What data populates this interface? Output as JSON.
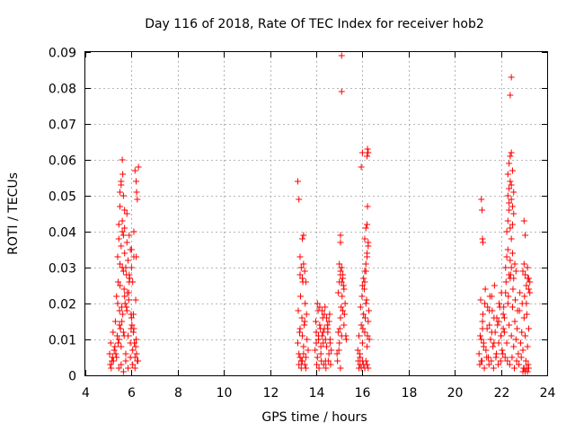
{
  "chart_data": {
    "type": "scatter",
    "title": "Day 116 of 2018, Rate Of TEC Index for receiver hob2",
    "xlabel": "GPS time / hours",
    "ylabel": "ROTI / TECUs",
    "xlim": [
      4,
      24
    ],
    "ylim": [
      0,
      0.09
    ],
    "xticks": [
      4,
      6,
      8,
      10,
      12,
      14,
      16,
      18,
      20,
      22,
      24
    ],
    "xtick_labels": [
      "4",
      "6",
      "8",
      "10",
      "12",
      "14",
      "16",
      "18",
      "20",
      "22",
      "24"
    ],
    "yticks": [
      0,
      0.01,
      0.02,
      0.03,
      0.04,
      0.05,
      0.06,
      0.07,
      0.08,
      0.09
    ],
    "ytick_labels": [
      "0",
      "0.01",
      "0.02",
      "0.03",
      "0.04",
      "0.05",
      "0.06",
      "0.07",
      "0.08",
      "0.09"
    ],
    "grid": true,
    "marker": "+",
    "color": "#ff0000",
    "series": [
      {
        "name": "ROTI",
        "x": [
          5.05,
          5.1,
          5.15,
          5.2,
          5.25,
          5.3,
          5.35,
          5.4,
          5.45,
          5.5,
          5.55,
          5.6,
          5.65,
          5.7,
          5.75,
          5.8,
          5.85,
          5.9,
          5.95,
          6.0,
          6.05,
          6.1,
          6.15,
          6.2,
          6.25,
          5.08,
          5.18,
          5.28,
          5.38,
          5.48,
          5.58,
          5.68,
          5.78,
          5.88,
          5.98,
          6.08,
          6.18,
          6.28,
          5.12,
          5.22,
          5.32,
          5.42,
          5.52,
          5.62,
          5.72,
          5.82,
          5.92,
          6.02,
          6.12,
          6.22,
          5.4,
          5.45,
          5.5,
          5.55,
          5.6,
          5.65,
          5.7,
          5.75,
          5.8,
          5.85,
          5.9,
          5.95,
          6.0,
          6.05,
          6.1,
          5.45,
          5.5,
          5.55,
          5.6,
          5.65,
          5.7,
          5.8,
          5.9,
          6.0,
          6.1,
          6.2,
          5.5,
          5.55,
          5.6,
          5.62,
          5.65,
          5.7,
          6.15,
          6.2,
          6.22,
          6.25,
          6.3,
          5.45,
          5.55,
          5.65,
          5.75,
          5.85,
          5.95,
          6.05,
          6.15,
          5.35,
          5.42,
          5.48,
          5.58,
          5.68,
          5.78,
          5.88,
          5.98,
          6.08,
          6.18,
          13.2,
          13.25,
          13.3,
          13.35,
          13.4,
          13.45,
          13.5,
          13.55,
          13.6,
          13.65,
          13.22,
          13.28,
          13.32,
          13.38,
          13.42,
          13.48,
          13.52,
          13.58,
          13.25,
          13.3,
          13.35,
          13.4,
          13.45,
          13.5,
          13.55,
          13.3,
          13.35,
          13.4,
          13.45,
          13.5,
          13.55,
          13.4,
          13.45,
          13.2,
          13.25,
          13.3,
          13.95,
          14.0,
          14.05,
          14.1,
          14.15,
          14.2,
          14.25,
          14.3,
          14.35,
          14.4,
          14.45,
          14.5,
          14.55,
          14.6,
          14.65,
          13.98,
          14.08,
          14.18,
          14.28,
          14.38,
          14.48,
          14.58,
          14.02,
          14.12,
          14.22,
          14.32,
          14.42,
          14.52,
          14.62,
          14.05,
          14.15,
          14.25,
          14.35,
          14.45,
          14.55,
          14.0,
          14.1,
          14.2,
          14.3,
          14.4,
          14.5,
          14.6,
          14.9,
          14.95,
          15.0,
          15.05,
          15.1,
          15.15,
          15.2,
          15.25,
          15.3,
          14.92,
          14.98,
          15.02,
          15.08,
          15.12,
          15.18,
          15.22,
          15.28,
          14.95,
          15.0,
          15.05,
          15.1,
          15.15,
          15.2,
          15.0,
          15.05,
          15.1,
          15.15,
          15.05,
          15.1,
          15.1,
          15.05,
          15.05,
          15.8,
          15.85,
          15.9,
          15.95,
          16.0,
          16.05,
          16.1,
          16.15,
          16.2,
          16.25,
          16.3,
          15.82,
          15.88,
          15.92,
          15.98,
          16.02,
          16.08,
          16.12,
          16.18,
          16.22,
          16.28,
          15.85,
          15.9,
          15.95,
          16.0,
          16.05,
          16.1,
          16.15,
          16.2,
          16.25,
          16.0,
          16.05,
          16.1,
          16.15,
          16.2,
          16.25,
          16.1,
          16.15,
          16.2,
          16.22,
          15.95,
          16.0,
          16.2,
          16.22,
          16.25,
          16.1,
          16.15,
          16.2,
          16.25,
          21.05,
          21.1,
          21.15,
          21.2,
          21.25,
          21.3,
          21.35,
          21.4,
          21.45,
          21.5,
          21.55,
          21.6,
          21.65,
          21.7,
          21.75,
          21.8,
          21.85,
          21.9,
          21.95,
          22.0,
          22.05,
          22.1,
          22.15,
          22.2,
          22.25,
          22.3,
          22.35,
          22.4,
          22.45,
          22.5,
          22.55,
          22.6,
          22.65,
          22.7,
          22.75,
          22.8,
          22.85,
          22.9,
          22.95,
          23.0,
          23.05,
          23.1,
          23.15,
          23.2,
          21.08,
          21.18,
          21.28,
          21.38,
          21.48,
          21.58,
          21.68,
          21.78,
          21.88,
          21.98,
          22.08,
          22.18,
          22.28,
          22.38,
          22.48,
          22.58,
          22.68,
          22.78,
          22.88,
          22.98,
          23.08,
          23.18,
          21.12,
          21.22,
          21.32,
          21.42,
          21.52,
          21.62,
          21.72,
          21.82,
          21.92,
          22.02,
          22.12,
          22.22,
          22.32,
          22.42,
          22.52,
          22.62,
          22.72,
          22.82,
          22.92,
          23.02,
          23.12,
          21.15,
          21.2,
          21.25,
          21.5,
          21.6,
          21.7,
          21.9,
          22.0,
          22.1,
          22.15,
          22.2,
          22.25,
          22.3,
          22.35,
          22.4,
          22.45,
          22.5,
          22.55,
          22.6,
          22.65,
          22.25,
          22.3,
          22.35,
          22.4,
          22.45,
          22.5,
          22.3,
          22.35,
          22.4,
          22.45,
          22.5,
          22.55,
          22.3,
          22.35,
          22.4,
          22.45,
          22.5,
          22.35,
          22.45,
          22.55,
          22.4,
          22.45,
          21.15,
          21.18,
          21.2,
          21.22,
          23.0,
          23.05,
          23.15,
          23.2,
          23.25,
          22.95,
          23.0,
          23.05,
          23.1,
          23.15,
          23.2,
          23.25,
          22.95,
          23.0,
          23.05,
          23.1,
          23.15,
          23.2
        ],
        "y": [
          0.006,
          0.009,
          0.004,
          0.012,
          0.007,
          0.015,
          0.005,
          0.02,
          0.01,
          0.025,
          0.008,
          0.03,
          0.012,
          0.022,
          0.006,
          0.018,
          0.011,
          0.026,
          0.009,
          0.016,
          0.007,
          0.013,
          0.005,
          0.01,
          0.004,
          0.003,
          0.005,
          0.008,
          0.011,
          0.014,
          0.019,
          0.024,
          0.028,
          0.021,
          0.017,
          0.012,
          0.008,
          0.004,
          0.002,
          0.004,
          0.006,
          0.009,
          0.013,
          0.017,
          0.02,
          0.023,
          0.027,
          0.014,
          0.009,
          0.006,
          0.033,
          0.038,
          0.031,
          0.036,
          0.04,
          0.029,
          0.034,
          0.03,
          0.037,
          0.032,
          0.028,
          0.035,
          0.03,
          0.026,
          0.033,
          0.042,
          0.047,
          0.053,
          0.043,
          0.039,
          0.041,
          0.045,
          0.039,
          0.035,
          0.04,
          0.033,
          0.051,
          0.054,
          0.06,
          0.056,
          0.05,
          0.046,
          0.057,
          0.054,
          0.051,
          0.049,
          0.058,
          0.002,
          0.003,
          0.001,
          0.004,
          0.002,
          0.005,
          0.003,
          0.002,
          0.022,
          0.026,
          0.018,
          0.015,
          0.011,
          0.019,
          0.023,
          0.013,
          0.017,
          0.021,
          0.009,
          0.006,
          0.013,
          0.004,
          0.011,
          0.008,
          0.015,
          0.005,
          0.01,
          0.007,
          0.018,
          0.012,
          0.022,
          0.016,
          0.026,
          0.014,
          0.02,
          0.017,
          0.003,
          0.005,
          0.002,
          0.004,
          0.006,
          0.003,
          0.002,
          0.028,
          0.03,
          0.027,
          0.031,
          0.029,
          0.026,
          0.038,
          0.039,
          0.054,
          0.049,
          0.033,
          0.007,
          0.012,
          0.005,
          0.01,
          0.014,
          0.006,
          0.011,
          0.009,
          0.013,
          0.004,
          0.008,
          0.012,
          0.006,
          0.01,
          0.007,
          0.015,
          0.018,
          0.013,
          0.016,
          0.019,
          0.014,
          0.017,
          0.003,
          0.002,
          0.004,
          0.003,
          0.002,
          0.004,
          0.003,
          0.02,
          0.019,
          0.018,
          0.017,
          0.016,
          0.015,
          0.009,
          0.011,
          0.008,
          0.012,
          0.01,
          0.013,
          0.009,
          0.006,
          0.012,
          0.009,
          0.016,
          0.011,
          0.018,
          0.014,
          0.02,
          0.01,
          0.004,
          0.007,
          0.013,
          0.019,
          0.022,
          0.025,
          0.017,
          0.011,
          0.023,
          0.026,
          0.028,
          0.03,
          0.027,
          0.024,
          0.031,
          0.029,
          0.026,
          0.028,
          0.039,
          0.079,
          0.089,
          0.037,
          0.002,
          0.007,
          0.011,
          0.005,
          0.014,
          0.009,
          0.017,
          0.012,
          0.02,
          0.008,
          0.015,
          0.01,
          0.004,
          0.006,
          0.019,
          0.022,
          0.013,
          0.024,
          0.016,
          0.021,
          0.011,
          0.018,
          0.002,
          0.003,
          0.002,
          0.004,
          0.003,
          0.002,
          0.004,
          0.003,
          0.002,
          0.025,
          0.027,
          0.029,
          0.031,
          0.033,
          0.036,
          0.038,
          0.041,
          0.042,
          0.047,
          0.058,
          0.062,
          0.061,
          0.063,
          0.062,
          0.026,
          0.029,
          0.034,
          0.037,
          0.006,
          0.011,
          0.004,
          0.015,
          0.009,
          0.02,
          0.007,
          0.013,
          0.005,
          0.018,
          0.01,
          0.022,
          0.008,
          0.016,
          0.012,
          0.006,
          0.014,
          0.009,
          0.019,
          0.011,
          0.007,
          0.017,
          0.012,
          0.023,
          0.009,
          0.02,
          0.014,
          0.027,
          0.011,
          0.019,
          0.008,
          0.015,
          0.01,
          0.013,
          0.006,
          0.018,
          0.009,
          0.012,
          0.007,
          0.016,
          0.011,
          0.02,
          0.008,
          0.013,
          0.003,
          0.004,
          0.002,
          0.005,
          0.003,
          0.004,
          0.002,
          0.005,
          0.003,
          0.004,
          0.006,
          0.005,
          0.004,
          0.003,
          0.005,
          0.002,
          0.004,
          0.003,
          0.005,
          0.002,
          0.004,
          0.003,
          0.021,
          0.017,
          0.024,
          0.019,
          0.022,
          0.018,
          0.025,
          0.016,
          0.02,
          0.023,
          0.019,
          0.026,
          0.022,
          0.028,
          0.024,
          0.021,
          0.018,
          0.023,
          0.02,
          0.022,
          0.017,
          0.01,
          0.013,
          0.008,
          0.014,
          0.012,
          0.009,
          0.015,
          0.011,
          0.013,
          0.016,
          0.03,
          0.033,
          0.035,
          0.028,
          0.032,
          0.03,
          0.034,
          0.027,
          0.031,
          0.029,
          0.04,
          0.043,
          0.046,
          0.041,
          0.038,
          0.042,
          0.05,
          0.052,
          0.054,
          0.049,
          0.047,
          0.051,
          0.056,
          0.059,
          0.061,
          0.062,
          0.057,
          0.048,
          0.053,
          0.045,
          0.078,
          0.083,
          0.049,
          0.046,
          0.038,
          0.037,
          0.043,
          0.039,
          0.027,
          0.024,
          0.026,
          0.029,
          0.031,
          0.028,
          0.025,
          0.03,
          0.027,
          0.023,
          0.001,
          0.002,
          0.001,
          0.002,
          0.001,
          0.002
        ]
      }
    ]
  }
}
